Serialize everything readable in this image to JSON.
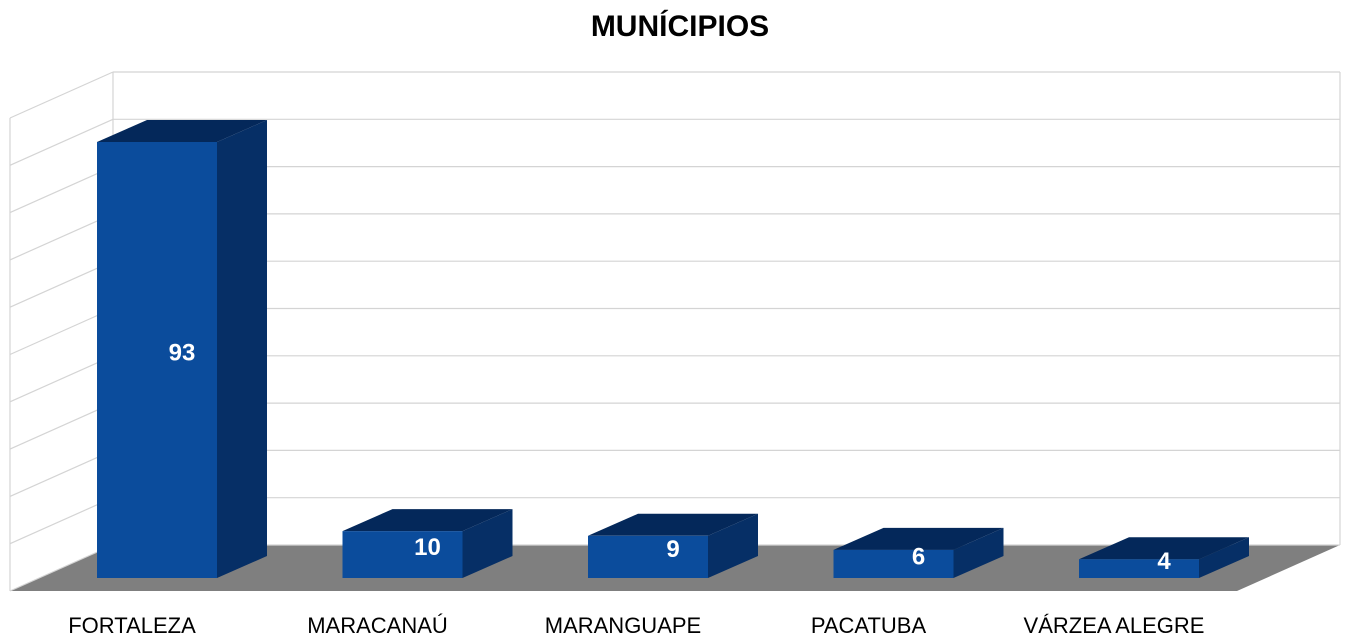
{
  "chart_data": {
    "type": "bar",
    "title": "MUNÍCIPIOS",
    "categories": [
      "FORTALEZA",
      "MARACANAÚ",
      "MARANGUAPE",
      "PACATUBA",
      "VÁRZEA ALEGRE"
    ],
    "values": [
      93,
      10,
      9,
      6,
      4
    ],
    "color": "#0b4c9c",
    "ylim": [
      0,
      100
    ],
    "yticks": [
      0,
      10,
      20,
      30,
      40,
      50,
      60,
      70,
      80,
      90,
      100
    ],
    "grid": true
  }
}
